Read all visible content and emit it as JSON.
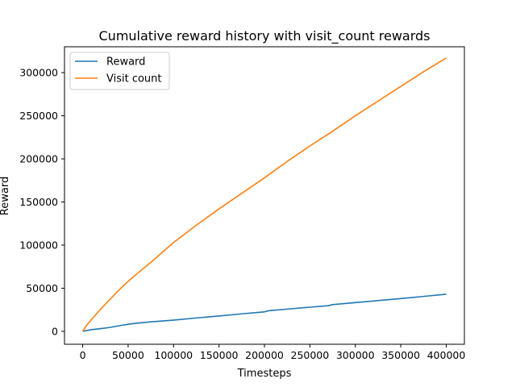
{
  "chart_data": {
    "type": "line",
    "title": "Cumulative reward history with visit_count rewards",
    "xlabel": "Timesteps",
    "ylabel": "Reward",
    "xlim": [
      -20000,
      420000
    ],
    "ylim": [
      -15000,
      330000
    ],
    "xticks": [
      0,
      50000,
      100000,
      150000,
      200000,
      250000,
      300000,
      350000,
      400000
    ],
    "yticks": [
      0,
      50000,
      100000,
      150000,
      200000,
      250000,
      300000
    ],
    "grid": false,
    "legend": "top-left",
    "series": [
      {
        "name": "Reward",
        "color": "#1f77b4",
        "x": [
          0,
          10000,
          20000,
          30000,
          40000,
          50000,
          60000,
          75000,
          100000,
          125000,
          150000,
          175000,
          200000,
          205000,
          225000,
          250000,
          270000,
          275000,
          300000,
          325000,
          350000,
          375000,
          400000
        ],
        "y": [
          0,
          2000,
          3200,
          4500,
          6500,
          8200,
          9500,
          11000,
          13000,
          15500,
          17800,
          20300,
          22600,
          24000,
          25800,
          28000,
          29700,
          31000,
          33300,
          35700,
          38000,
          40500,
          43000
        ]
      },
      {
        "name": "Visit count",
        "color": "#ff7f0e",
        "x": [
          0,
          5000,
          10000,
          20000,
          30000,
          40000,
          50000,
          60000,
          75000,
          100000,
          125000,
          150000,
          175000,
          200000,
          225000,
          250000,
          275000,
          300000,
          325000,
          350000,
          375000,
          400000
        ],
        "y": [
          0,
          8000,
          14000,
          26000,
          37000,
          48000,
          58000,
          67000,
          80000,
          103000,
          123000,
          142000,
          160000,
          178000,
          197000,
          215000,
          232000,
          250000,
          267000,
          284000,
          301000,
          317000
        ]
      }
    ]
  }
}
